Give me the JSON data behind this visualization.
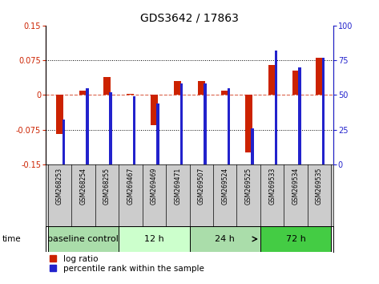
{
  "title": "GDS3642 / 17863",
  "samples": [
    "GSM268253",
    "GSM268254",
    "GSM268255",
    "GSM269467",
    "GSM269469",
    "GSM269471",
    "GSM269507",
    "GSM269524",
    "GSM269525",
    "GSM269533",
    "GSM269534",
    "GSM269535"
  ],
  "log_ratio": [
    -0.085,
    0.01,
    0.038,
    0.002,
    -0.065,
    0.03,
    0.03,
    0.01,
    -0.125,
    0.065,
    0.052,
    0.08
  ],
  "pct_rank": [
    32,
    55,
    52,
    49,
    44,
    58,
    58,
    55,
    26,
    82,
    70,
    77
  ],
  "groups": [
    {
      "label": "baseline control",
      "start": 0,
      "end": 3
    },
    {
      "label": "12 h",
      "start": 3,
      "end": 6
    },
    {
      "label": "24 h",
      "start": 6,
      "end": 9
    },
    {
      "label": "72 h",
      "start": 9,
      "end": 12
    }
  ],
  "group_colors": [
    "#aaddaa",
    "#ccffcc",
    "#aaddaa",
    "#44cc44"
  ],
  "ylim_left": [
    -0.15,
    0.15
  ],
  "ylim_right": [
    0,
    100
  ],
  "yticks_left": [
    -0.15,
    -0.075,
    0,
    0.075,
    0.15
  ],
  "yticks_right": [
    0,
    25,
    50,
    75,
    100
  ],
  "hlines": [
    -0.075,
    0.0,
    0.075
  ],
  "bar_color_red": "#cc2200",
  "bar_color_blue": "#2222cc",
  "bg_color": "#ffffff",
  "plot_bg": "#ffffff",
  "tick_label_color_left": "#cc2200",
  "tick_label_color_right": "#2222cc",
  "red_bar_width": 0.3,
  "blue_bar_width": 0.12,
  "title_fontsize": 10,
  "tick_fontsize": 7,
  "legend_fontsize": 7.5,
  "group_label_fontsize": 8,
  "sample_fontsize": 5.5
}
